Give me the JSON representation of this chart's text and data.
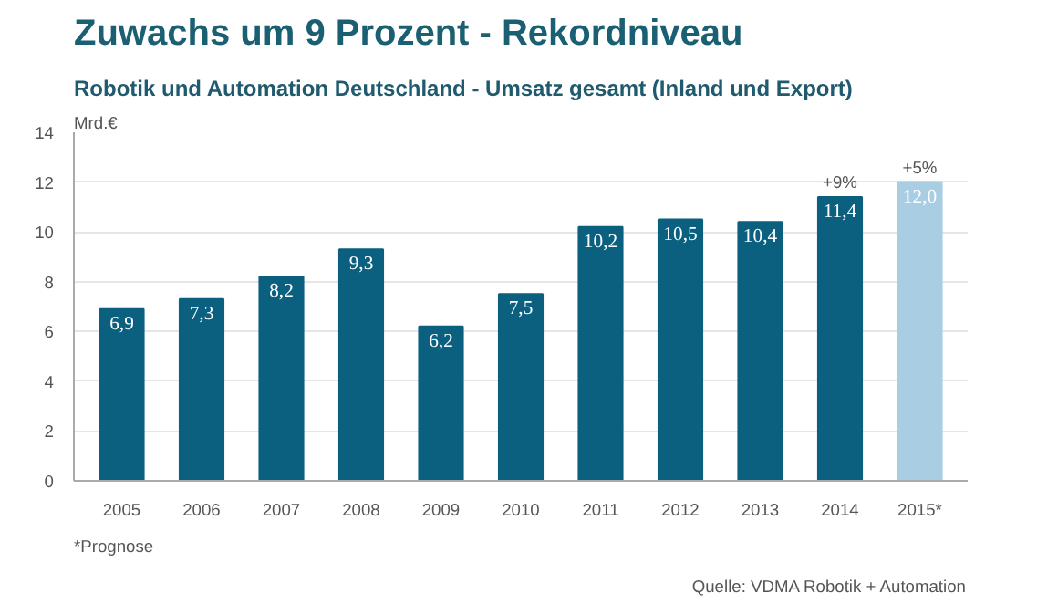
{
  "chart_data": {
    "type": "bar",
    "title": "Zuwachs um 9 Prozent - Rekordniveau",
    "subtitle": "Robotik und Automation Deutschland  - Umsatz gesamt (Inland und Export)",
    "ylabel": "Mrd.€",
    "categories": [
      "2005",
      "2006",
      "2007",
      "2008",
      "2009",
      "2010",
      "2011",
      "2012",
      "2013",
      "2014",
      "2015*"
    ],
    "values": [
      6.9,
      7.3,
      8.2,
      9.3,
      6.2,
      7.5,
      10.2,
      10.5,
      10.4,
      11.4,
      12.0
    ],
    "colors": [
      "#0b5f7f",
      "#0b5f7f",
      "#0b5f7f",
      "#0b5f7f",
      "#0b5f7f",
      "#0b5f7f",
      "#0b5f7f",
      "#0b5f7f",
      "#0b5f7f",
      "#0b5f7f",
      "#a9cde3"
    ],
    "value_labels": [
      "6,9",
      "7,3",
      "8,2",
      "9,3",
      "6,2",
      "7,5",
      "10,2",
      "10,5",
      "10,4",
      "11,4",
      "12,0"
    ],
    "ylim": [
      0,
      14
    ],
    "yticks": [
      0,
      2,
      4,
      6,
      8,
      10,
      12,
      14
    ],
    "grid": "y",
    "annotations": [
      {
        "text": "+9%",
        "x": "2014",
        "y": 11.4
      },
      {
        "text": "+5%",
        "x": "2015*",
        "y": 12.0
      },
      "*Prognose",
      "Quelle: VDMA Robotik + Automation"
    ]
  }
}
